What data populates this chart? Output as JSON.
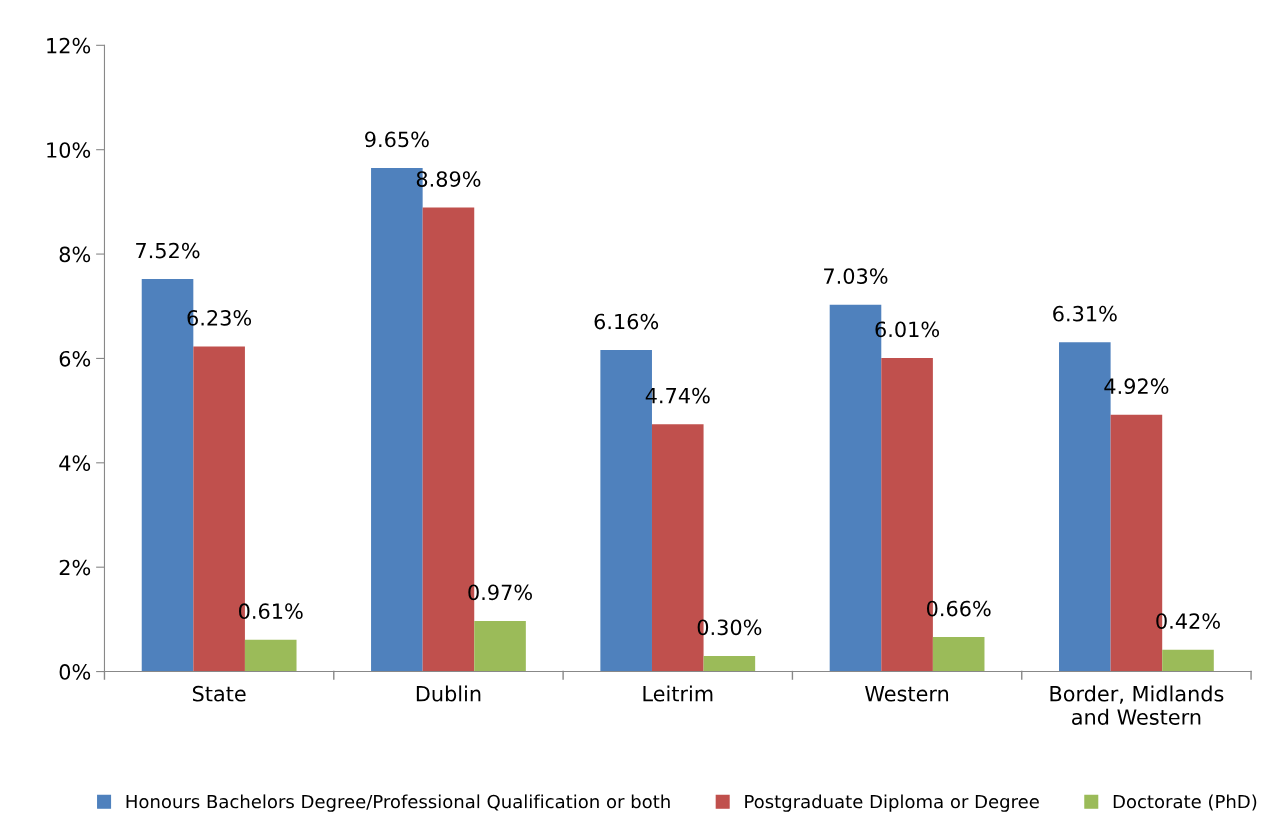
{
  "chart_data": {
    "type": "bar",
    "categories": [
      "State",
      "Dublin",
      "Leitrim",
      "Western",
      "Border, Midlands\nand Western"
    ],
    "series": [
      {
        "name": "Honours Bachelors Degree/Professional Qualification or both",
        "color": "#4f81bd",
        "values": [
          7.52,
          9.65,
          6.16,
          7.03,
          6.31
        ],
        "value_labels": [
          "7.52%",
          "9.65%",
          "6.16%",
          "7.03%",
          "6.31%"
        ]
      },
      {
        "name": "Postgraduate Diploma or Degree",
        "color": "#c0504d",
        "values": [
          6.23,
          8.89,
          4.74,
          6.01,
          4.92
        ],
        "value_labels": [
          "6.23%",
          "8.89%",
          "4.74%",
          "6.01%",
          "4.92%"
        ]
      },
      {
        "name": "Doctorate (PhD)",
        "color": "#9bbb59",
        "values": [
          0.61,
          0.97,
          0.3,
          0.66,
          0.42
        ],
        "value_labels": [
          "0.61%",
          "0.97%",
          "0.30%",
          "0.66%",
          "0.42%"
        ]
      }
    ],
    "ylim": [
      0,
      12
    ],
    "yticks": [
      {
        "value": 0,
        "label": "0%"
      },
      {
        "value": 2,
        "label": "2%"
      },
      {
        "value": 4,
        "label": "4%"
      },
      {
        "value": 6,
        "label": "6%"
      },
      {
        "value": 8,
        "label": "8%"
      },
      {
        "value": 10,
        "label": "10%"
      },
      {
        "value": 12,
        "label": "12%"
      }
    ],
    "grid": false,
    "legend": "bottom"
  }
}
